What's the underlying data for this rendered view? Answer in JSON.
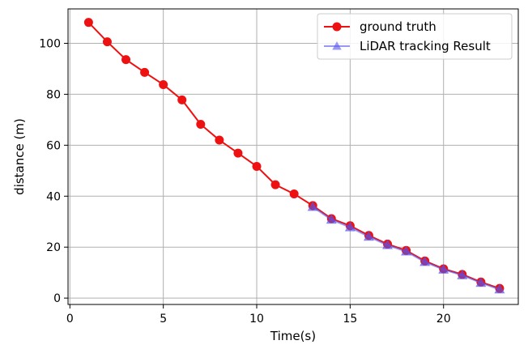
{
  "chart_data": {
    "type": "line",
    "title": "",
    "xlabel": "Time(s)",
    "ylabel": "distance (m)",
    "xlim": [
      -0.1,
      24.0
    ],
    "ylim": [
      -2.5,
      113.5
    ],
    "xticks": [
      0,
      5,
      10,
      15,
      20
    ],
    "yticks": [
      0,
      20,
      40,
      60,
      80,
      100
    ],
    "grid": true,
    "legend_position": "top-right",
    "series": [
      {
        "name": "ground truth",
        "color": "#ee1111",
        "marker": "circle",
        "x": [
          1,
          2,
          3,
          4,
          5,
          6,
          7,
          8,
          9,
          10,
          11,
          12,
          13,
          14,
          15,
          16,
          17,
          18,
          19,
          20,
          21,
          22,
          23
        ],
        "y": [
          108.2,
          100.6,
          93.6,
          88.6,
          83.8,
          77.8,
          68.2,
          62.0,
          56.9,
          51.7,
          44.5,
          40.9,
          36.3,
          31.2,
          28.4,
          24.6,
          21.2,
          18.7,
          14.6,
          11.5,
          9.3,
          6.3,
          3.8
        ]
      },
      {
        "name": "LiDAR tracking Result",
        "color": "#5555ee",
        "marker": "triangle",
        "x": [
          13,
          14,
          15,
          16,
          17,
          18,
          19,
          20,
          21,
          22,
          23
        ],
        "y": [
          35.8,
          30.8,
          27.8,
          24.1,
          20.8,
          18.3,
          14.2,
          11.2,
          9.0,
          6.0,
          3.4
        ]
      }
    ]
  }
}
